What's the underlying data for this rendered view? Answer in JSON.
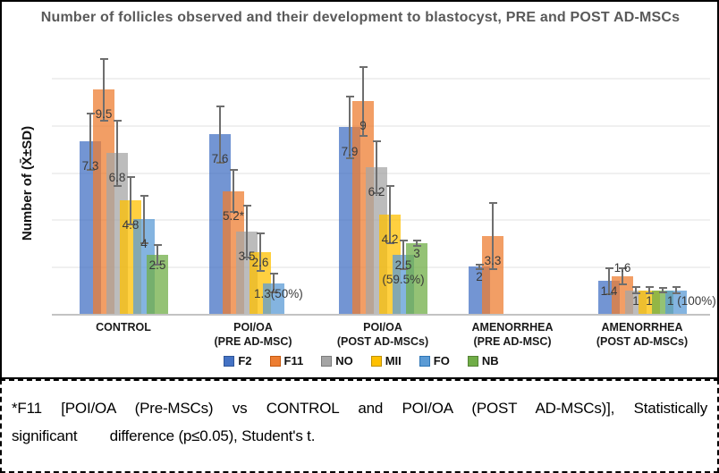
{
  "title": "Number of follicles observed and their development to blastocyst, PRE and POST AD-MSCs",
  "y_axis_label": "Number of (X̄±SD)",
  "note": {
    "line1": "*F11 [POI/OA (Pre-MSCs) vs CONTROL and POI/OA (POST AD-MSCs)], Statistically",
    "line2": "significant        difference (p≤0.05), Student's t."
  },
  "series_colors": {
    "F2": {
      "fill": "rgba(68,114,196,0.75)",
      "solid": "#4472C4",
      "border": "#2F5597"
    },
    "F11": {
      "fill": "rgba(237,125,49,0.75)",
      "solid": "#ED7D31",
      "border": "#C55A11"
    },
    "NO": {
      "fill": "rgba(165,165,165,0.75)",
      "solid": "#A5A5A5",
      "border": "#7B7B7B"
    },
    "MII": {
      "fill": "rgba(255,192,0,0.75)",
      "solid": "#FFC000",
      "border": "#BF9000"
    },
    "FO": {
      "fill": "rgba(91,155,213,0.75)",
      "solid": "#5B9BD5",
      "border": "#2E75B6"
    },
    "NB": {
      "fill": "rgba(112,173,71,0.75)",
      "solid": "#70AD47",
      "border": "#548235"
    }
  },
  "chart_data": {
    "type": "bar",
    "title": "Number of follicles observed and their development to blastocyst, PRE and POST AD-MSCs",
    "xlabel": "",
    "ylabel": "Number of (X̄±SD)",
    "ylim": [
      0,
      11
    ],
    "gridlines": [
      2,
      4,
      6,
      8,
      10
    ],
    "grid": true,
    "legend_position": "bottom",
    "error_bars": "±SD",
    "series_order": [
      "F2",
      "F11",
      "NO",
      "MII",
      "FO",
      "NB"
    ],
    "legend": [
      "F2",
      "F11",
      "NO",
      "MII",
      "FO",
      "NB"
    ],
    "categories": [
      "CONTROL",
      "POI/OA (PRE AD-MSC)",
      "POI/OA (POST AD-MSCs)",
      "AMENORRHEA (PRE AD-MSC)",
      "AMENORRHEA (POST AD-MSCs)"
    ],
    "groups": [
      {
        "category_lines": [
          "CONTROL"
        ],
        "bars": [
          {
            "series": "F2",
            "value": 7.3,
            "sd": 1.2,
            "label": "7.3"
          },
          {
            "series": "F11",
            "value": 9.5,
            "sd": 1.3,
            "label": "9.5"
          },
          {
            "series": "NO",
            "value": 6.8,
            "sd": 1.4,
            "label": "6.8"
          },
          {
            "series": "MII",
            "value": 4.8,
            "sd": 1.0,
            "label": "4.8"
          },
          {
            "series": "FO",
            "value": 4,
            "sd": 1.0,
            "label": "4"
          },
          {
            "series": "NB",
            "value": 2.5,
            "sd": 0.4,
            "label": "2.5"
          }
        ]
      },
      {
        "category_lines": [
          "POI/OA",
          "(PRE AD-MSC)"
        ],
        "bars": [
          {
            "series": "F2",
            "value": 7.6,
            "sd": 1.2,
            "label": "7.6"
          },
          {
            "series": "F11",
            "value": 5.2,
            "sd": 0.9,
            "label": "5.2*"
          },
          {
            "series": "NO",
            "value": 3.5,
            "sd": 1.1,
            "label": "3.5"
          },
          {
            "series": "MII",
            "value": 2.6,
            "sd": 0.8,
            "label": "2.6"
          },
          {
            "series": "FO",
            "value": 1.3,
            "sd": 0.4,
            "label": "1.3(50%)",
            "label_anchor": "right"
          }
        ]
      },
      {
        "category_lines": [
          "POI/OA",
          "(POST AD-MSCs)"
        ],
        "bars": [
          {
            "series": "F2",
            "value": 7.9,
            "sd": 1.3,
            "label": "7.9"
          },
          {
            "series": "F11",
            "value": 9,
            "sd": 1.45,
            "label": "9"
          },
          {
            "series": "NO",
            "value": 6.2,
            "sd": 1.1,
            "label": "6.2"
          },
          {
            "series": "MII",
            "value": 4.2,
            "sd": 1.2,
            "label": "4.2"
          },
          {
            "series": "FO",
            "value": 2.5,
            "sd": 0.6,
            "label": "2.5\n(59.5%)"
          },
          {
            "series": "NB",
            "value": 3,
            "sd": 0.12,
            "label": "3"
          }
        ]
      },
      {
        "category_lines": [
          "AMENORRHEA",
          "(PRE AD-MSC)"
        ],
        "bars": [
          {
            "series": "F2",
            "value": 2,
            "sd": 0.1,
            "label": "2"
          },
          {
            "series": "F11",
            "value": 3.3,
            "sd": 1.4,
            "label": "3.3"
          }
        ]
      },
      {
        "category_lines": [
          "AMENORRHEA",
          "(POST AD-MSCs)"
        ],
        "bars": [
          {
            "series": "F2",
            "value": 1.4,
            "sd": 0.55,
            "label": "1.4"
          },
          {
            "series": "F11",
            "value": 1.6,
            "sd": 0.35,
            "label": "1.6",
            "label_pos": "above"
          },
          {
            "series": "NO",
            "value": 1,
            "sd": 0.12,
            "label": "1"
          },
          {
            "series": "MII",
            "value": 1,
            "sd": 0.12,
            "label": "1"
          },
          {
            "series": "NB",
            "value": 1,
            "sd": 0.1,
            "label": ""
          },
          {
            "series": "FO",
            "value": 1,
            "sd": 0.12,
            "label": "1 (100%)",
            "label_anchor": "right"
          }
        ]
      }
    ]
  }
}
